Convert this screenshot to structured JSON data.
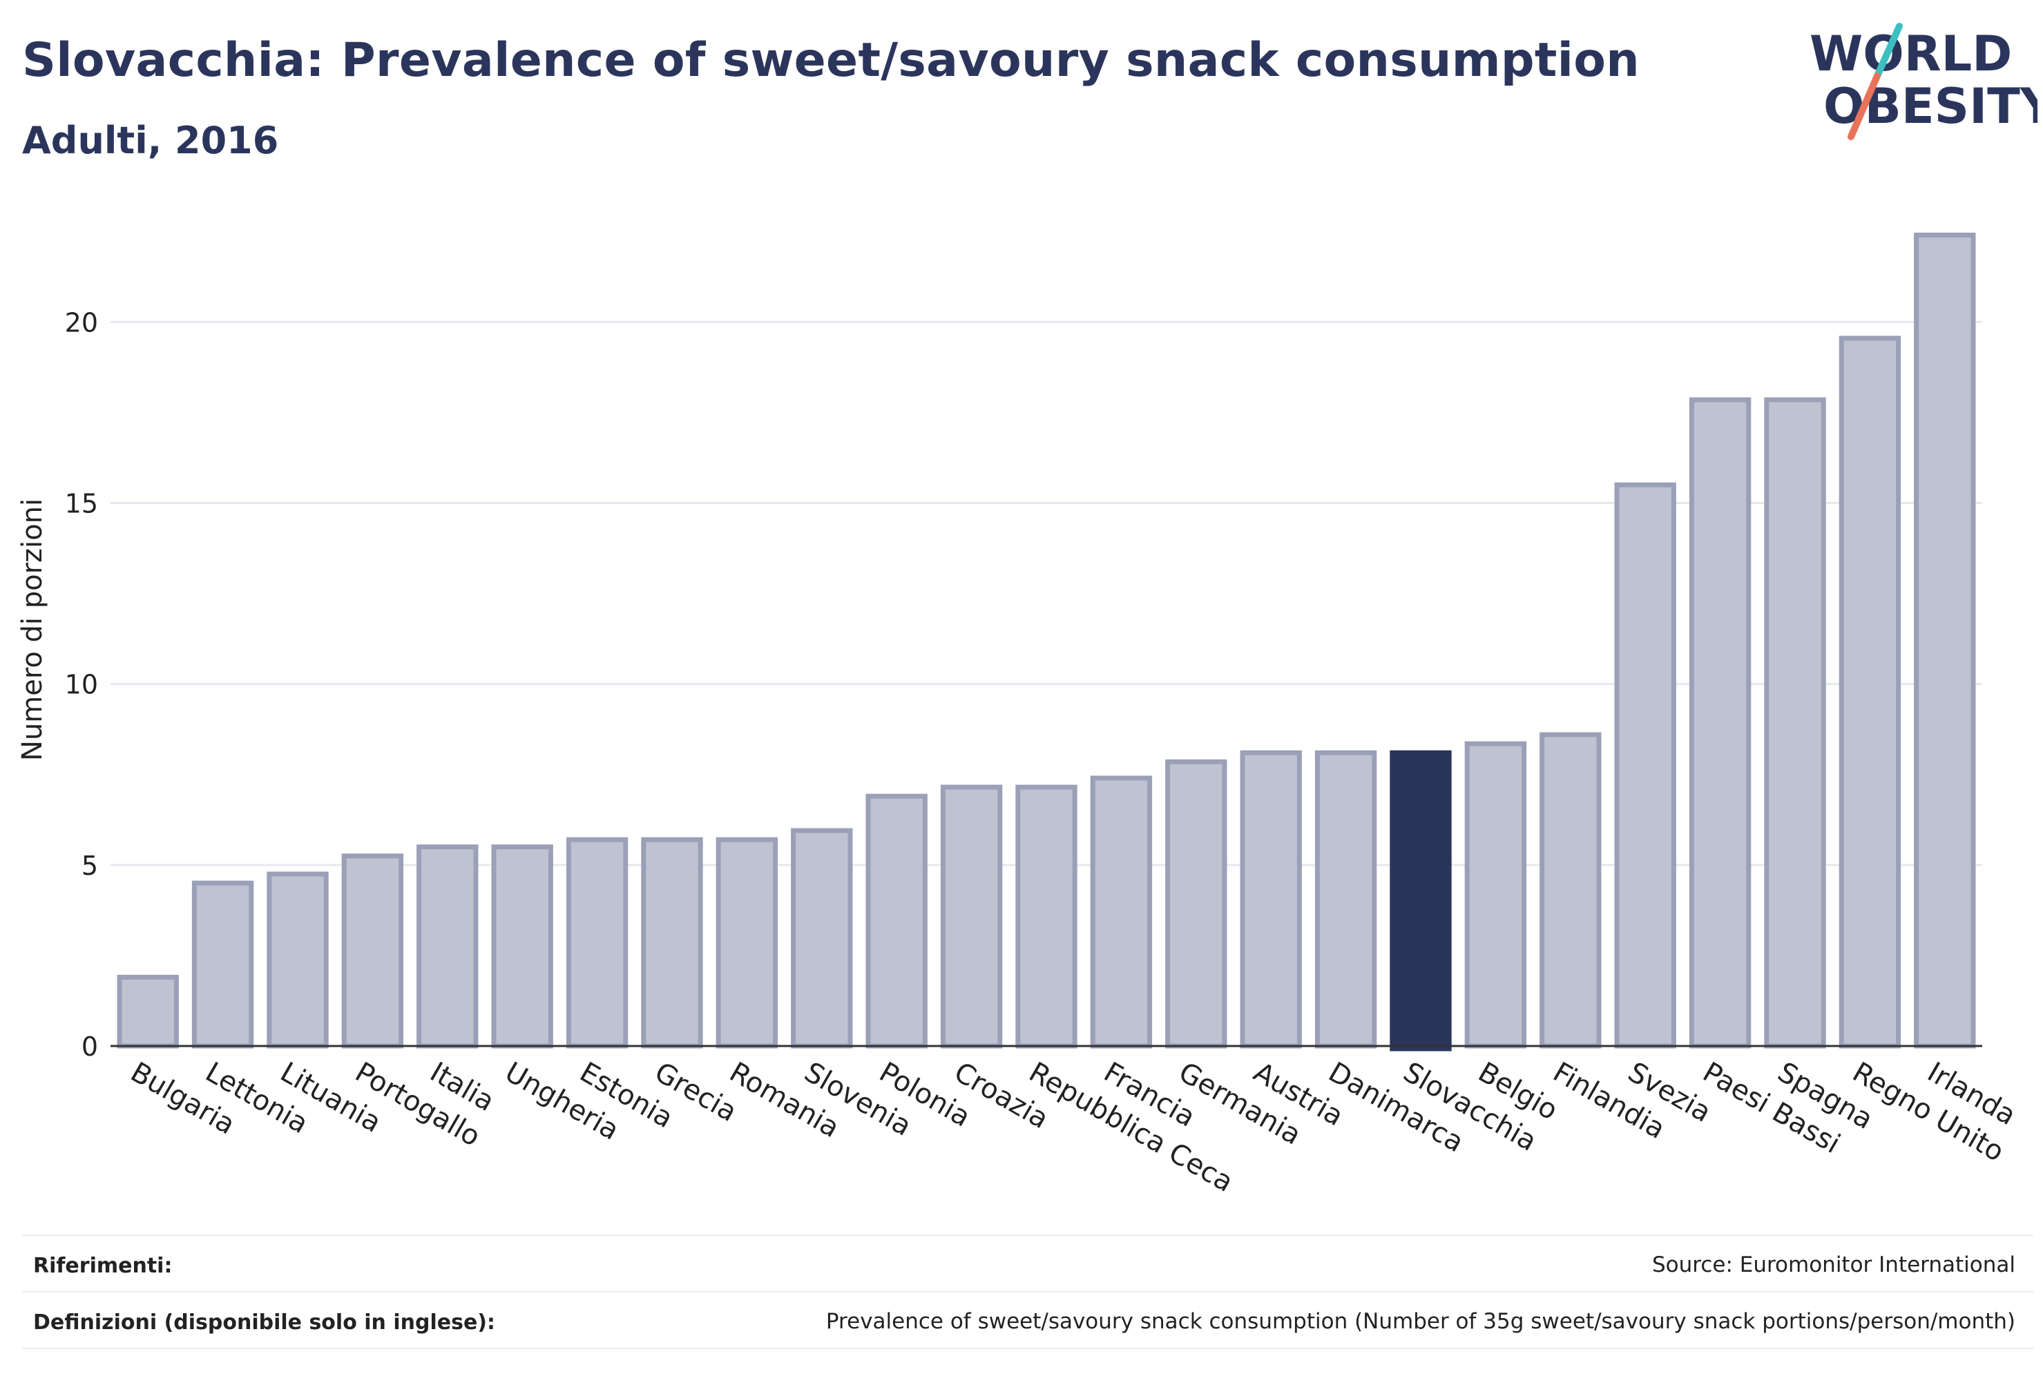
{
  "header": {
    "title": "Slovacchia: Prevalence of sweet/savoury snack consumption",
    "subtitle": "Adulti, 2016"
  },
  "logo": {
    "line1": "WORLD",
    "line2": "OBESITY"
  },
  "colors": {
    "bar": "#bfc3d1",
    "bar_border": "#9aa0b7",
    "highlight": "#2b355c",
    "grid": "#e6e8ee",
    "axis": "#333333",
    "brand_navy": "#2b355c",
    "brand_teal": "#3cbfc0",
    "brand_coral": "#e8735a"
  },
  "chart_data": {
    "type": "bar",
    "ylabel": "Numero di porzioni",
    "ylim": [
      0,
      23
    ],
    "yticks": [
      0,
      5,
      10,
      15,
      20
    ],
    "grid": true,
    "highlight": "Slovacchia",
    "categories": [
      "Bulgaria",
      "Lettonia",
      "Lituania",
      "Portogallo",
      "Italia",
      "Ungheria",
      "Estonia",
      "Grecia",
      "Romania",
      "Slovenia",
      "Polonia",
      "Croazia",
      "Repubblica Ceca",
      "Francia",
      "Germania",
      "Austria",
      "Danimarca",
      "Slovacchia",
      "Belgio",
      "Finlandia",
      "Svezia",
      "Paesi Bassi",
      "Spagna",
      "Regno Unito",
      "Irlanda"
    ],
    "values": [
      1.9,
      4.5,
      4.75,
      5.25,
      5.5,
      5.5,
      5.7,
      5.7,
      5.7,
      5.95,
      6.9,
      7.15,
      7.15,
      7.4,
      7.85,
      8.1,
      8.1,
      8.1,
      8.35,
      8.6,
      15.5,
      17.85,
      17.85,
      19.55,
      22.4
    ]
  },
  "footer": {
    "references_label": "Riferimenti:",
    "references_value": "Source: Euromonitor International",
    "definitions_label": "Definizioni (disponibile solo in inglese):",
    "definitions_value": "Prevalence of sweet/savoury snack consumption (Number of 35g sweet/savoury snack portions/person/month)"
  }
}
